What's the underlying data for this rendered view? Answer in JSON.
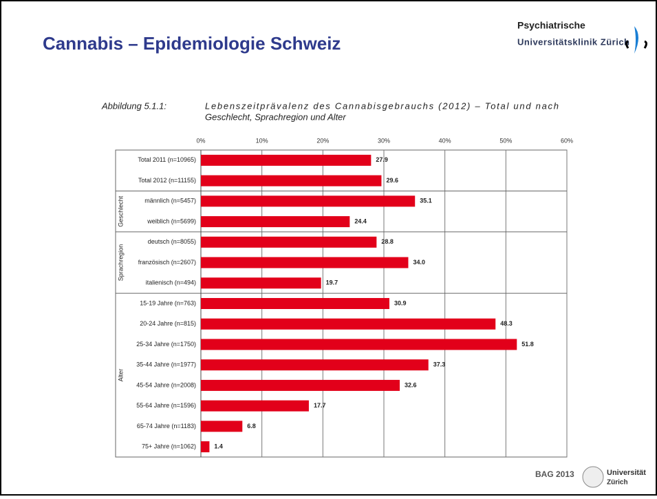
{
  "slide": {
    "title": "Cannabis – Epidemiologie Schweiz",
    "logo_top": [
      "Psychiatrische",
      "Universitätsklinik Zürich"
    ],
    "footer": "BAG 2013",
    "logo_bottom": [
      "Universität",
      "Zürich"
    ]
  },
  "chart_data": {
    "type": "barh",
    "caption": "Abbildung 5.1.1:",
    "subtitle_lines": [
      "Lebenszeitprävalenz des Cannabisgebrauchs (2012) – Total und nach",
      "Geschlecht, Sprachregion und Alter"
    ],
    "groups": [
      "Geschlecht",
      "Sprachregion",
      "Alter"
    ],
    "categories": [
      "Total 2011 (n=10965)",
      "Total 2012 (n=11155)",
      "männlich (n=5457)",
      "weiblich (n=5699)",
      "deutsch (n=8055)",
      "französisch (n=2607)",
      "italienisch (n=494)",
      "15-19 Jahre (n=763)",
      "20-24 Jahre (n=815)",
      "25-34 Jahre (n=1750)",
      "35-44 Jahre (n=1977)",
      "45-54 Jahre (n=2008)",
      "55-64 Jahre (n=1596)",
      "65-74 Jahre (n=1183)",
      "75+ Jahre (n=1062)"
    ],
    "values": [
      27.9,
      29.6,
      35.1,
      24.4,
      28.8,
      34.0,
      19.7,
      30.9,
      48.3,
      51.8,
      37.3,
      32.6,
      17.7,
      6.8,
      1.4
    ],
    "value_labels": [
      "27.9",
      "29.6",
      "35.1",
      "24.4",
      "28.8",
      "34.0",
      "19.7",
      "30.9",
      "48.3",
      "51.8",
      "37.3",
      "32.6",
      "17.7",
      "6.8",
      "1.4"
    ],
    "color": "#e2001a",
    "xlim": [
      0,
      60
    ],
    "xticks": [
      {
        "value": 0,
        "label": "0%"
      },
      {
        "value": 10,
        "label": "10%"
      },
      {
        "value": 20,
        "label": "20%"
      },
      {
        "value": 30,
        "label": "30%"
      },
      {
        "value": 40,
        "label": "40%"
      },
      {
        "value": 50,
        "label": "50%"
      },
      {
        "value": 60,
        "label": "60%"
      }
    ],
    "grid": true
  }
}
